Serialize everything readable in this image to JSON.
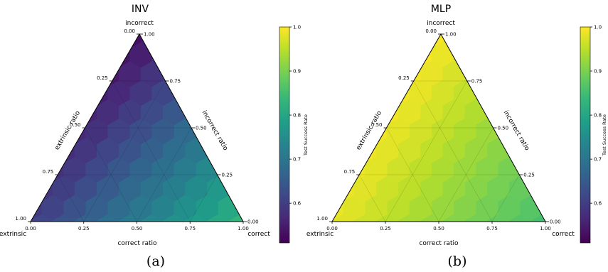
{
  "colorscale": {
    "name": "viridis",
    "stops": [
      "#440154",
      "#482878",
      "#3e4989",
      "#31688e",
      "#26828e",
      "#1f9e89",
      "#35b779",
      "#6ece58",
      "#b5de2b",
      "#fde725"
    ]
  },
  "chart_data": [
    {
      "type": "heatmap",
      "subtype": "ternary-hexbin",
      "title": "INV",
      "caption": "(a)",
      "corners": {
        "top": "incorrect",
        "left": "extrinsic",
        "right": "correct"
      },
      "axes": {
        "bottom": {
          "label": "correct ratio",
          "ticks": [
            "0.00",
            "0.25",
            "0.50",
            "0.75",
            "1.00"
          ]
        },
        "left": {
          "label": "extrinsic ratio",
          "ticks": [
            "0.00",
            "0.25",
            "0.50",
            "0.75",
            "1.00"
          ]
        },
        "right": {
          "label": "incorrect ratio",
          "ticks": [
            "1.00",
            "0.75",
            "0.50",
            "0.25",
            "0.00"
          ]
        }
      },
      "colorbar": {
        "label": "Test Success Rate",
        "range": [
          0.51,
          1.0
        ],
        "ticks": [
          "0.6",
          "0.7",
          "0.8",
          "0.9",
          "1.0"
        ]
      },
      "values": {
        "base": 0.6,
        "coef_correct": 0.23,
        "coef_incorrect": -0.07,
        "min": 0.51,
        "max": 1.0
      }
    },
    {
      "type": "heatmap",
      "subtype": "ternary-hexbin",
      "title": "MLP",
      "caption": "(b)",
      "corners": {
        "top": "incorrect",
        "left": "extrinsic",
        "right": "correct"
      },
      "axes": {
        "bottom": {
          "label": "correct ratio",
          "ticks": [
            "0.00",
            "0.25",
            "0.50",
            "0.75",
            "1.00"
          ]
        },
        "left": {
          "label": "extrinsic ratio",
          "ticks": [
            "0.00",
            "0.25",
            "0.50",
            "0.75",
            "1.00"
          ]
        },
        "right": {
          "label": "incorrect ratio",
          "ticks": [
            "1.00",
            "0.75",
            "0.50",
            "0.25",
            "0.00"
          ]
        }
      },
      "colorbar": {
        "label": "Test Success Rate",
        "range": [
          0.51,
          1.0
        ],
        "ticks": [
          "0.6",
          "0.7",
          "0.8",
          "0.9",
          "1.0"
        ]
      },
      "values": {
        "base": 0.985,
        "coef_correct": -0.13,
        "coef_incorrect": 0.01,
        "min": 0.51,
        "max": 1.0
      }
    }
  ]
}
